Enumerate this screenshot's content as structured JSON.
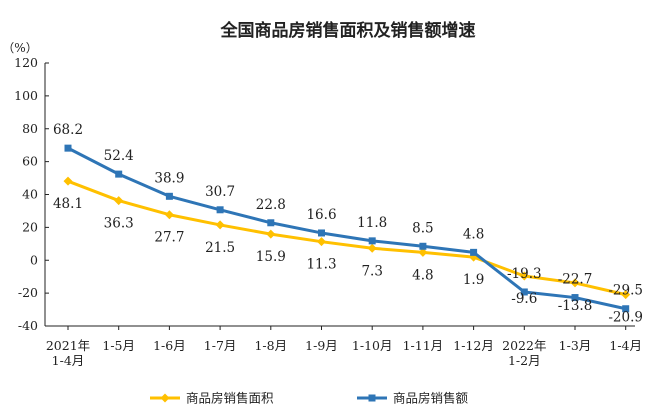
{
  "chart_data": {
    "type": "line",
    "title": "全国商品房销售面积及销售额增速",
    "ylabel": "（%）",
    "ylim": [
      -40,
      120
    ],
    "yticks": [
      -40,
      -20,
      0,
      20,
      40,
      60,
      80,
      100,
      120
    ],
    "grid": false,
    "legend": "bottom",
    "categories": [
      [
        "2021年",
        "1-4月"
      ],
      [
        "1-5月"
      ],
      [
        "1-6月"
      ],
      [
        "1-7月"
      ],
      [
        "1-8月"
      ],
      [
        "1-9月"
      ],
      [
        "1-10月"
      ],
      [
        "1-11月"
      ],
      [
        "1-12月"
      ],
      [
        "2022年",
        "1-2月"
      ],
      [
        "1-3月"
      ],
      [
        "1-4月"
      ]
    ],
    "series": [
      {
        "name": "商品房销售面积",
        "color": "#FFC000",
        "marker": "diamond",
        "values": [
          48.1,
          36.3,
          27.7,
          21.5,
          15.9,
          11.3,
          7.3,
          4.8,
          1.9,
          -9.6,
          -13.8,
          -20.9
        ],
        "labels": [
          "48.1",
          "36.3",
          "27.7",
          "21.5",
          "15.9",
          "11.3",
          "7.3",
          "4.8",
          "1.9",
          "-9.6",
          "-13.8",
          "-20.9"
        ]
      },
      {
        "name": "商品房销售额",
        "color": "#2E75B6",
        "marker": "square",
        "values": [
          68.2,
          52.4,
          38.9,
          30.7,
          22.8,
          16.6,
          11.8,
          8.5,
          4.8,
          -19.3,
          -22.7,
          -29.5
        ],
        "labels": [
          "68.2",
          "52.4",
          "38.9",
          "30.7",
          "22.8",
          "16.6",
          "11.8",
          "8.5",
          "4.8",
          "-19.3",
          "-22.7",
          "-29.5"
        ]
      }
    ]
  }
}
